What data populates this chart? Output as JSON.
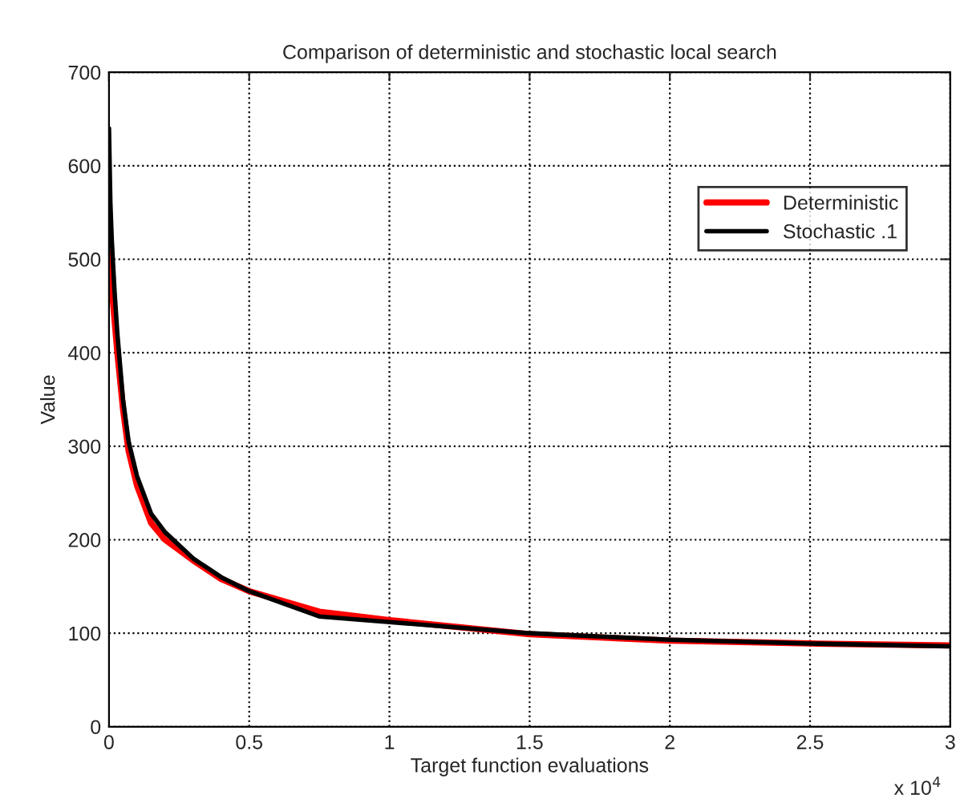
{
  "chart_data": {
    "type": "line",
    "title": "Comparison of deterministic and stochastic local search",
    "xlabel": "Target function evaluations",
    "ylabel": "Value",
    "annotations": [
      "x 10$^{4}$"
    ],
    "series": [
      {
        "name": "Deterministic",
        "color": "#ff0000",
        "x": [
          0,
          0.01,
          0.03,
          0.05,
          0.07,
          0.1,
          0.15,
          0.2,
          0.3,
          0.4,
          0.5,
          0.75,
          1,
          1.5,
          2,
          2.5,
          3
        ],
        "values": [
          510,
          470,
          400,
          340,
          295,
          258,
          218,
          200,
          178,
          158,
          145,
          123,
          114,
          99,
          92,
          89,
          87
        ]
      },
      {
        "name": "Stochastic .1",
        "color": "#000000",
        "x": [
          0,
          0.005,
          0.01,
          0.02,
          0.03,
          0.05,
          0.07,
          0.1,
          0.15,
          0.2,
          0.3,
          0.4,
          0.5,
          0.75,
          1,
          1.5,
          2,
          2.5,
          3
        ],
        "values": [
          640,
          560,
          520,
          465,
          420,
          350,
          305,
          268,
          228,
          208,
          180,
          160,
          145,
          118,
          112,
          100,
          93,
          89,
          86
        ]
      }
    ],
    "xlim": [
      0,
      3
    ],
    "xticks": [
      0,
      0.5,
      1,
      1.5,
      2,
      2.5,
      3
    ],
    "ylim": [
      0,
      700
    ],
    "yticks": [
      0,
      100,
      200,
      300,
      400,
      500,
      600,
      700
    ],
    "grid": true,
    "legend": "top right",
    "line_style": "solid",
    "marker": "none"
  }
}
